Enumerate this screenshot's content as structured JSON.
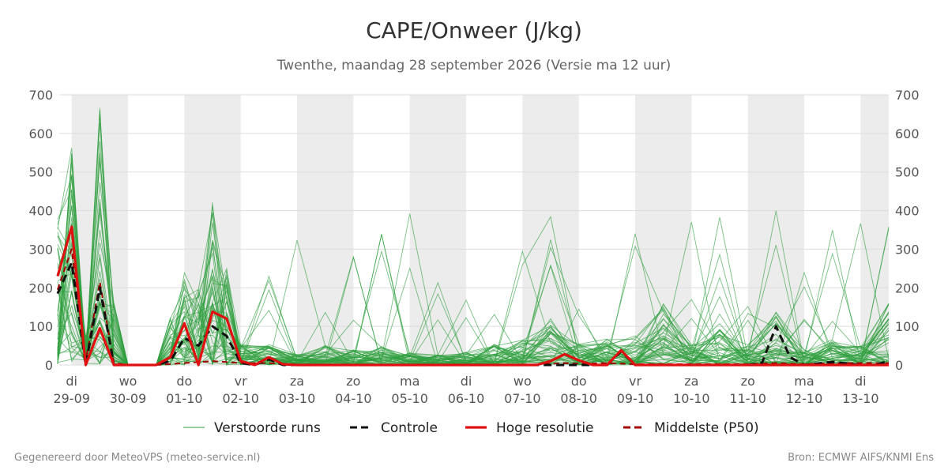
{
  "title": "CAPE/Onweer (J/kg)",
  "subtitle": "Twenthe, maandag 28 september 2026 (Versie ma 12 uur)",
  "footer_left": "Gegenereerd door MeteoVPS (meteo-service.nl)",
  "footer_right": "Bron: ECMWF AIFS/KNMI Ens",
  "colors": {
    "perturbed": "#2e9e3e",
    "control": "#111111",
    "highres": "#e01010",
    "median": "#a00000",
    "band": "#ececec",
    "grid": "#dddddd"
  },
  "chart_data": {
    "type": "line",
    "ylim": [
      0,
      700
    ],
    "yticks": [
      0,
      100,
      200,
      300,
      400,
      500,
      600,
      700
    ],
    "x_unit": "days from 29-09 00h",
    "xlim": [
      -0.22,
      14.5
    ],
    "xticks": [
      {
        "x": 0,
        "day": "di",
        "date": "29-09"
      },
      {
        "x": 1,
        "day": "wo",
        "date": "30-09"
      },
      {
        "x": 2,
        "day": "do",
        "date": "01-10"
      },
      {
        "x": 3,
        "day": "vr",
        "date": "02-10"
      },
      {
        "x": 4,
        "day": "za",
        "date": "03-10"
      },
      {
        "x": 5,
        "day": "zo",
        "date": "04-10"
      },
      {
        "x": 6,
        "day": "ma",
        "date": "05-10"
      },
      {
        "x": 7,
        "day": "di",
        "date": "06-10"
      },
      {
        "x": 8,
        "day": "wo",
        "date": "07-10"
      },
      {
        "x": 9,
        "day": "do",
        "date": "08-10"
      },
      {
        "x": 10,
        "day": "vr",
        "date": "09-10"
      },
      {
        "x": 11,
        "day": "za",
        "date": "10-10"
      },
      {
        "x": 12,
        "day": "zo",
        "date": "11-10"
      },
      {
        "x": 13,
        "day": "ma",
        "date": "12-10"
      },
      {
        "x": 14,
        "day": "di",
        "date": "13-10"
      }
    ],
    "shaded_days": [
      0,
      2,
      4,
      6,
      8,
      10,
      12,
      14
    ],
    "legend": [
      {
        "key": "perturbed",
        "label": "Verstoorde runs",
        "style": "thin"
      },
      {
        "key": "control",
        "label": "Controle",
        "style": "dash"
      },
      {
        "key": "highres",
        "label": "Hoge resolutie",
        "style": "solid"
      },
      {
        "key": "median",
        "label": "Middelste (P50)",
        "style": "dash"
      }
    ],
    "highres": {
      "x": [
        -0.25,
        0,
        0.25,
        0.5,
        0.75,
        1,
        1.25,
        1.5,
        1.75,
        2,
        2.25,
        2.5,
        2.75,
        3,
        3.25,
        3.5,
        3.75,
        4,
        4.5,
        5,
        5.5,
        6,
        6.5,
        7,
        7.5,
        8,
        8.25,
        8.5,
        8.75,
        9,
        9.25,
        9.5,
        9.75,
        10,
        10.5,
        11,
        11.5,
        12,
        12.5,
        13,
        13.5,
        14,
        14.5
      ],
      "y": [
        230,
        358,
        0,
        95,
        0,
        0,
        0,
        0,
        20,
        108,
        0,
        138,
        120,
        10,
        0,
        20,
        2,
        0,
        0,
        0,
        0,
        0,
        0,
        0,
        0,
        0,
        0,
        10,
        28,
        12,
        0,
        0,
        38,
        0,
        0,
        0,
        0,
        0,
        0,
        0,
        0,
        0,
        0
      ]
    },
    "control": {
      "x": [
        -0.25,
        0,
        0.25,
        0.5,
        0.75,
        1,
        1.25,
        1.5,
        1.75,
        2,
        2.25,
        2.5,
        2.75,
        3,
        3.25,
        3.5,
        3.75,
        4,
        4.5,
        5,
        6,
        7,
        8,
        9,
        9.5,
        9.75,
        10,
        10.5,
        11,
        11.5,
        12,
        12.25,
        12.5,
        12.75,
        13,
        13.5,
        14,
        14.25,
        14.5
      ],
      "y": [
        185,
        265,
        0,
        200,
        0,
        0,
        0,
        0,
        10,
        70,
        50,
        100,
        75,
        5,
        0,
        15,
        0,
        0,
        0,
        0,
        0,
        0,
        0,
        0,
        0,
        35,
        0,
        0,
        0,
        0,
        0,
        5,
        100,
        20,
        0,
        8,
        0,
        0,
        10
      ]
    },
    "median": {
      "x": [
        -0.25,
        0,
        0.25,
        0.5,
        0.75,
        1,
        1.5,
        2,
        2.5,
        3,
        3.5,
        4,
        5,
        6,
        7,
        8,
        8.5,
        8.75,
        9,
        9.5,
        10,
        11,
        12,
        12.5,
        13,
        13.5,
        14,
        14.5
      ],
      "y": [
        195,
        300,
        10,
        215,
        5,
        0,
        0,
        5,
        10,
        5,
        5,
        0,
        0,
        0,
        0,
        0,
        3,
        5,
        3,
        5,
        2,
        2,
        2,
        5,
        2,
        5,
        5,
        5
      ]
    }
  }
}
